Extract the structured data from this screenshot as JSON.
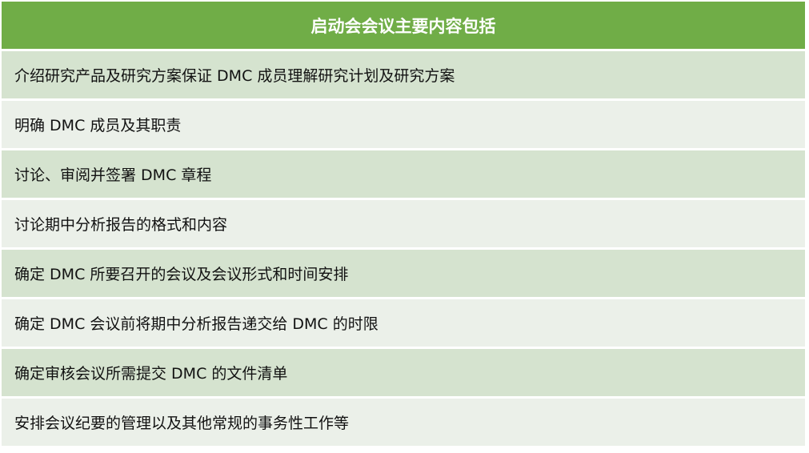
{
  "header": "启动会会议主要内容包括",
  "rows": [
    "介绍研究产品及研究方案保证 DMC 成员理解研究计划及研究方案",
    "明确 DMC 成员及其职责",
    "讨论、审阅并签署 DMC 章程",
    "讨论期中分析报告的格式和内容",
    "确定 DMC 所要召开的会议及会议形式和时间安排",
    "确定 DMC 会议前将期中分析报告递交给 DMC 的时限",
    "确定审核会议所需提交 DMC 的文件清单",
    "安排会议纪要的管理以及其他常规的事务性工作等"
  ],
  "colors": {
    "header": "#70AD47",
    "row_odd": "#D5E3CF",
    "row_even": "#EBF0E9"
  }
}
